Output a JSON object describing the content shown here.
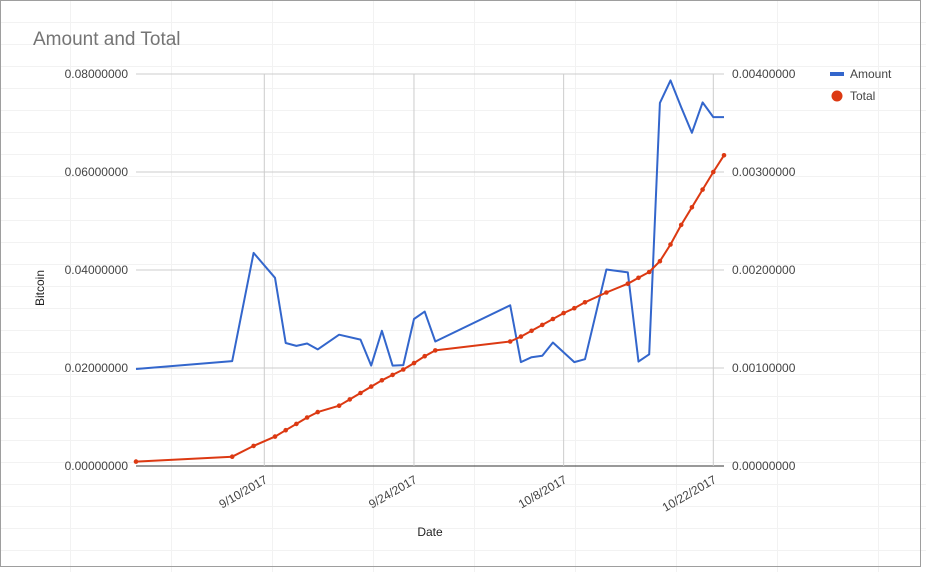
{
  "chart_data": {
    "type": "line",
    "title": "Amount and Total",
    "xlabel": "Date",
    "ylabel": "Bitcoin",
    "ylabel_right": "",
    "x_ticks": [
      "9/10/2017",
      "9/24/2017",
      "10/8/2017",
      "10/22/2017"
    ],
    "y_left_ticks": [
      "0.08000000",
      "0.06000000",
      "0.04000000",
      "0.02000000",
      "0.00000000"
    ],
    "y_right_ticks": [
      "0.00400000",
      "0.00300000",
      "0.00200000",
      "0.00100000",
      "0.00000000"
    ],
    "ylim_left": [
      0,
      0.08
    ],
    "ylim_right": [
      0,
      0.004
    ],
    "xlim": [
      "2017-08-29",
      "2017-10-23"
    ],
    "grid": true,
    "legend_position": "top-right",
    "series": [
      {
        "name": "Amount",
        "axis": "left",
        "color": "#3366cc",
        "markers": false,
        "x": [
          "2017-08-29",
          "2017-09-07",
          "2017-09-09",
          "2017-09-11",
          "2017-09-12",
          "2017-09-13",
          "2017-09-14",
          "2017-09-15",
          "2017-09-17",
          "2017-09-19",
          "2017-09-20",
          "2017-09-21",
          "2017-09-22",
          "2017-09-23",
          "2017-09-24",
          "2017-09-25",
          "2017-09-26",
          "2017-10-03",
          "2017-10-04",
          "2017-10-05",
          "2017-10-06",
          "2017-10-07",
          "2017-10-09",
          "2017-10-10",
          "2017-10-12",
          "2017-10-14",
          "2017-10-15",
          "2017-10-16",
          "2017-10-17",
          "2017-10-18",
          "2017-10-19",
          "2017-10-20",
          "2017-10-21",
          "2017-10-22",
          "2017-10-23"
        ],
        "y": [
          0.0198,
          0.0214,
          0.0435,
          0.0384,
          0.0251,
          0.0245,
          0.025,
          0.0238,
          0.0268,
          0.0258,
          0.0205,
          0.0276,
          0.0205,
          0.0206,
          0.03,
          0.0315,
          0.0254,
          0.0328,
          0.0212,
          0.0222,
          0.0225,
          0.0252,
          0.0212,
          0.0218,
          0.0401,
          0.0395,
          0.0213,
          0.0228,
          0.0741,
          0.0787,
          0.0732,
          0.068,
          0.0742,
          0.0712,
          0.0712
        ]
      },
      {
        "name": "Total",
        "axis": "right",
        "color": "#dc3912",
        "markers": true,
        "x": [
          "2017-08-29",
          "2017-09-07",
          "2017-09-09",
          "2017-09-11",
          "2017-09-12",
          "2017-09-13",
          "2017-09-14",
          "2017-09-15",
          "2017-09-17",
          "2017-09-18",
          "2017-09-19",
          "2017-09-20",
          "2017-09-21",
          "2017-09-22",
          "2017-09-23",
          "2017-09-24",
          "2017-09-25",
          "2017-09-26",
          "2017-10-03",
          "2017-10-04",
          "2017-10-05",
          "2017-10-06",
          "2017-10-07",
          "2017-10-08",
          "2017-10-09",
          "2017-10-10",
          "2017-10-12",
          "2017-10-14",
          "2017-10-15",
          "2017-10-16",
          "2017-10-17",
          "2017-10-18",
          "2017-10-19",
          "2017-10-20",
          "2017-10-21",
          "2017-10-22",
          "2017-10-23"
        ],
        "y": [
          4.5e-05,
          9.5e-05,
          0.000205,
          0.0003,
          0.000365,
          0.00043,
          0.000495,
          0.00055,
          0.000615,
          0.00068,
          0.000745,
          0.00081,
          0.000875,
          0.00093,
          0.000985,
          0.00105,
          0.00112,
          0.00118,
          0.00127,
          0.00132,
          0.00138,
          0.00144,
          0.0015,
          0.00156,
          0.00161,
          0.00167,
          0.00177,
          0.00186,
          0.00192,
          0.00198,
          0.00209,
          0.00226,
          0.00246,
          0.00264,
          0.00282,
          0.003,
          0.00317
        ]
      }
    ]
  }
}
